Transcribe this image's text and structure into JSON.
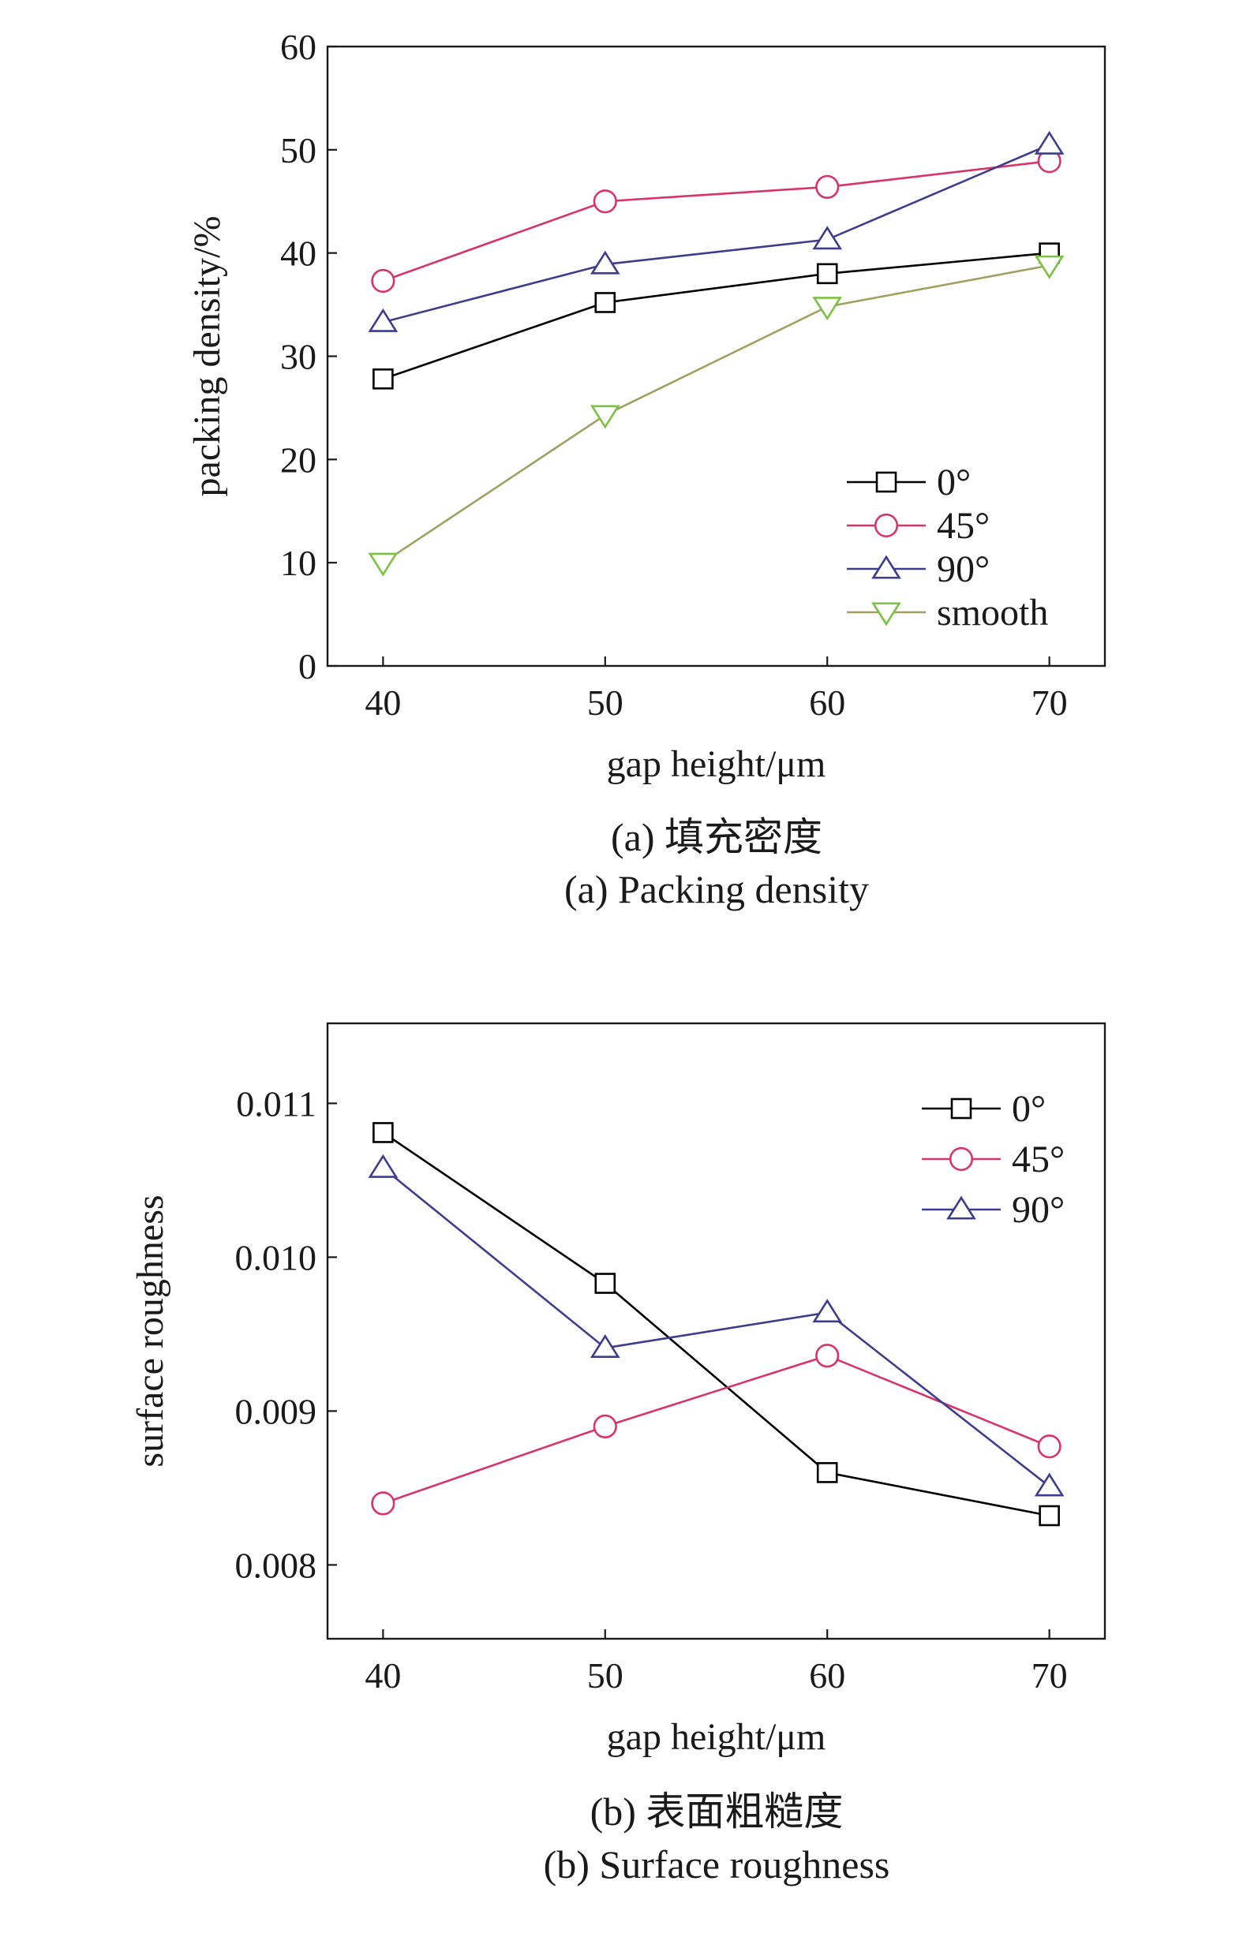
{
  "chart_data": [
    {
      "type": "line",
      "x": [
        40,
        50,
        60,
        70
      ],
      "xlim": [
        37.5,
        72.5
      ],
      "ylim": [
        0,
        60
      ],
      "xticks": [
        "40",
        "50",
        "60",
        "70"
      ],
      "yticks": [
        "0",
        "10",
        "20",
        "30",
        "40",
        "50",
        "60"
      ],
      "xlabel": "gap height/μm",
      "ylabel": "packing density/%",
      "caption_cn": "(a) 填充密度",
      "caption_en": "(a) Packing density",
      "grid": false,
      "legend_position": "bottom-right",
      "series": [
        {
          "name": "0°",
          "values": [
            27.8,
            35.2,
            38.0,
            40.0
          ],
          "color": "#000000",
          "marker": "square"
        },
        {
          "name": "45°",
          "values": [
            37.3,
            45.0,
            46.4,
            48.9
          ],
          "color": "#d8336a",
          "marker": "circle"
        },
        {
          "name": "90°",
          "values": [
            33.3,
            38.9,
            41.3,
            50.5
          ],
          "color": "#3d3d8f",
          "marker": "triangle-up"
        },
        {
          "name": "smooth",
          "values": [
            10.0,
            24.3,
            34.8,
            38.8
          ],
          "color": "#7cc242",
          "line_color": "#a0a060",
          "marker": "triangle-down"
        }
      ]
    },
    {
      "type": "line",
      "x": [
        40,
        50,
        60,
        70
      ],
      "xlim": [
        37.5,
        72.5
      ],
      "ylim": [
        0.00752,
        0.01152
      ],
      "xticks": [
        "40",
        "50",
        "60",
        "70"
      ],
      "yticks": [
        "0.008",
        "0.009",
        "0.010",
        "0.011"
      ],
      "xlabel": "gap height/μm",
      "ylabel": "surface roughness",
      "caption_cn": "(b) 表面粗糙度",
      "caption_en": "(b) Surface roughness",
      "grid": false,
      "legend_position": "top-right",
      "series": [
        {
          "name": "0°",
          "values": [
            0.01081,
            0.00983,
            0.0086,
            0.00832
          ],
          "color": "#000000",
          "marker": "square"
        },
        {
          "name": "45°",
          "values": [
            0.0084,
            0.0089,
            0.00936,
            0.00877
          ],
          "color": "#d8336a",
          "marker": "circle"
        },
        {
          "name": "90°",
          "values": [
            0.01058,
            0.00941,
            0.00964,
            0.00851
          ],
          "color": "#3d3d8f",
          "marker": "triangle-up"
        }
      ]
    }
  ]
}
